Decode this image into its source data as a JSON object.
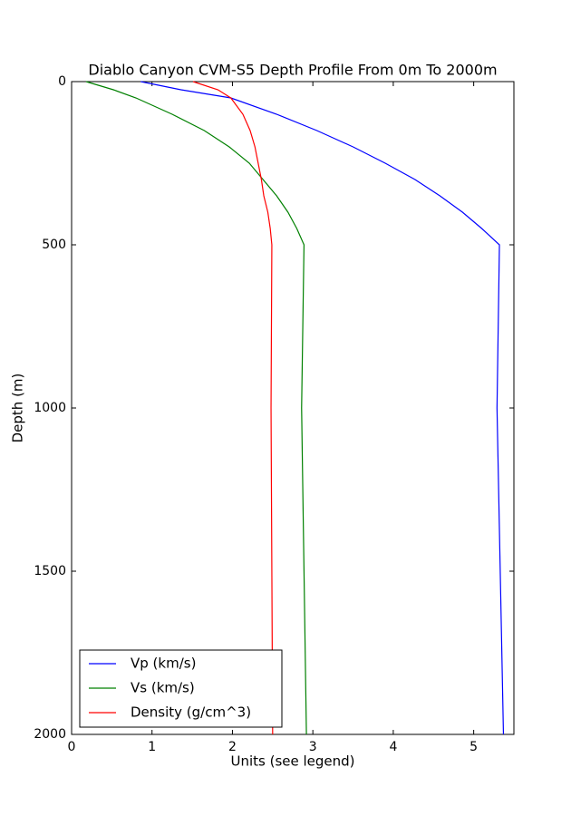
{
  "chart_data": {
    "type": "line",
    "orientation": "vertical",
    "title": "Diablo Canyon CVM-S5 Depth Profile From 0m To 2000m",
    "xlabel": "Units (see legend)",
    "ylabel": "Depth (m)",
    "y": [
      0,
      25,
      50,
      100,
      150,
      200,
      250,
      300,
      350,
      400,
      450,
      500,
      1000,
      1500,
      2000
    ],
    "series": [
      {
        "name": "Vp (km/s)",
        "color": "#0000ff",
        "values": [
          0.86,
          1.36,
          1.98,
          2.55,
          3.05,
          3.5,
          3.9,
          4.27,
          4.58,
          4.86,
          5.1,
          5.32,
          5.29,
          5.33,
          5.37
        ]
      },
      {
        "name": "Vs (km/s)",
        "color": "#008000",
        "values": [
          0.18,
          0.52,
          0.8,
          1.25,
          1.65,
          1.96,
          2.21,
          2.38,
          2.55,
          2.69,
          2.8,
          2.89,
          2.86,
          2.89,
          2.92
        ]
      },
      {
        "name": "Density (g/cm^3)",
        "color": "#ff0000",
        "values": [
          1.51,
          1.82,
          1.98,
          2.13,
          2.22,
          2.28,
          2.32,
          2.36,
          2.39,
          2.44,
          2.47,
          2.49,
          2.48,
          2.49,
          2.5
        ]
      }
    ],
    "xlim": [
      0,
      5.5
    ],
    "xticks": [
      0,
      1,
      2,
      3,
      4,
      5
    ],
    "ylim": [
      0,
      2000
    ],
    "yticks": [
      0,
      500,
      1000,
      1500,
      2000
    ],
    "y_inverted": true,
    "legend": "lower left",
    "grid": false
  }
}
